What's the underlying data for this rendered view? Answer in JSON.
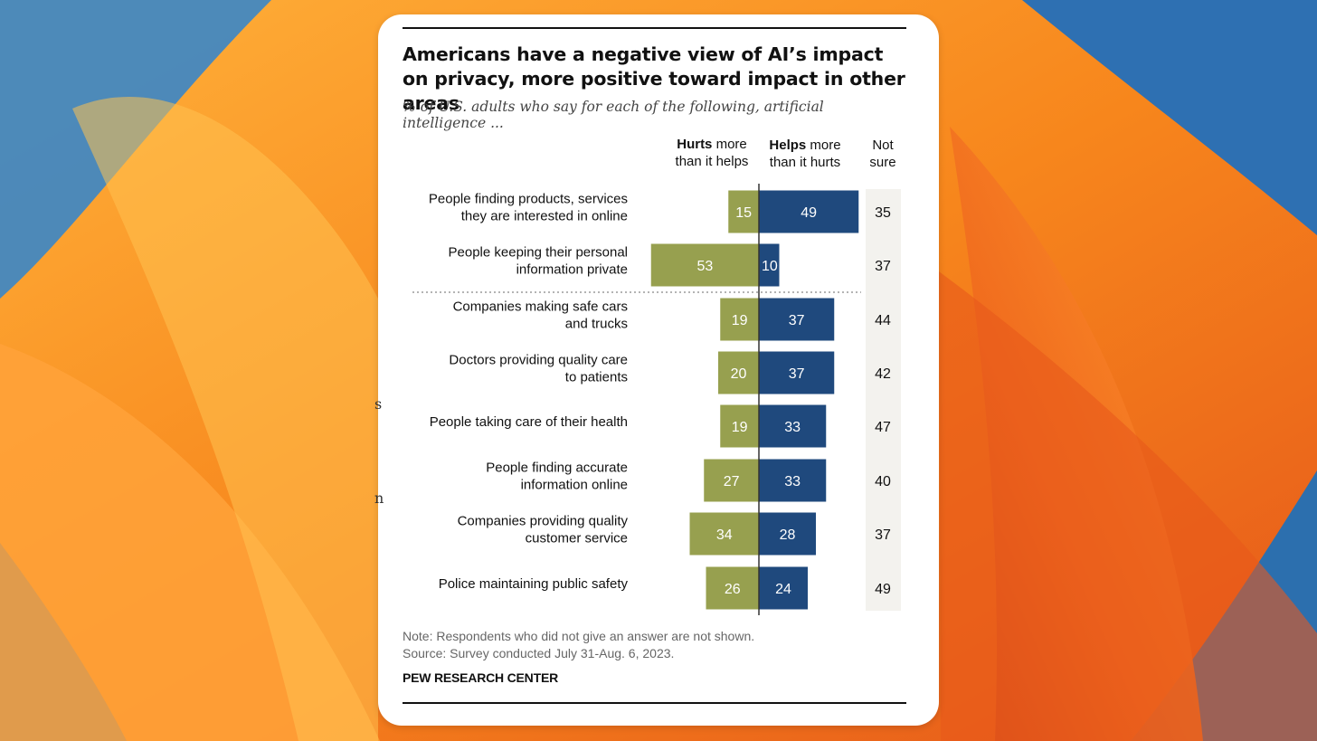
{
  "colors": {
    "hurts": "#97A04F",
    "helps": "#1F497D",
    "notsure_bg": "#F3F2EE",
    "card": "#FFFFFF"
  },
  "title": "Americans have a negative view of AI’s impact on privacy, more positive toward impact in other areas",
  "subtitle": "% of U.S. adults who say for each of the following, artificial intelligence ...",
  "columns": {
    "hurts_bold": "Hurts",
    "hurts_rest_1": "more",
    "hurts_rest_2": "than it helps",
    "helps_bold": "Helps",
    "helps_rest_1": "more",
    "helps_rest_2": "than it hurts",
    "notsure_1": "Not",
    "notsure_2": "sure"
  },
  "chart_data": {
    "type": "bar",
    "orientation": "horizontal-diverging",
    "categories": [
      [
        "People finding products, services",
        "they are interested in online"
      ],
      [
        "People keeping their personal",
        "information private"
      ],
      [
        "Companies making safe cars",
        "and trucks"
      ],
      [
        "Doctors providing quality care",
        "to patients"
      ],
      [
        "People taking care of their health"
      ],
      [
        "People finding accurate",
        "information online"
      ],
      [
        "Companies providing quality",
        "customer service"
      ],
      [
        "Police maintaining public safety"
      ]
    ],
    "series": [
      {
        "name": "Hurts more than it helps",
        "values": [
          15,
          53,
          19,
          20,
          19,
          27,
          34,
          26
        ]
      },
      {
        "name": "Helps more than it hurts",
        "values": [
          49,
          10,
          37,
          37,
          33,
          33,
          28,
          24
        ]
      },
      {
        "name": "Not sure",
        "values": [
          35,
          37,
          44,
          42,
          47,
          40,
          37,
          49
        ]
      }
    ]
  },
  "note": "Note: Respondents who did not give an answer are not shown.",
  "source": "Source: Survey conducted July 31-Aug. 6, 2023.",
  "brand": "PEW RESEARCH CENTER",
  "edge_glyphs": [
    "s",
    "n"
  ]
}
